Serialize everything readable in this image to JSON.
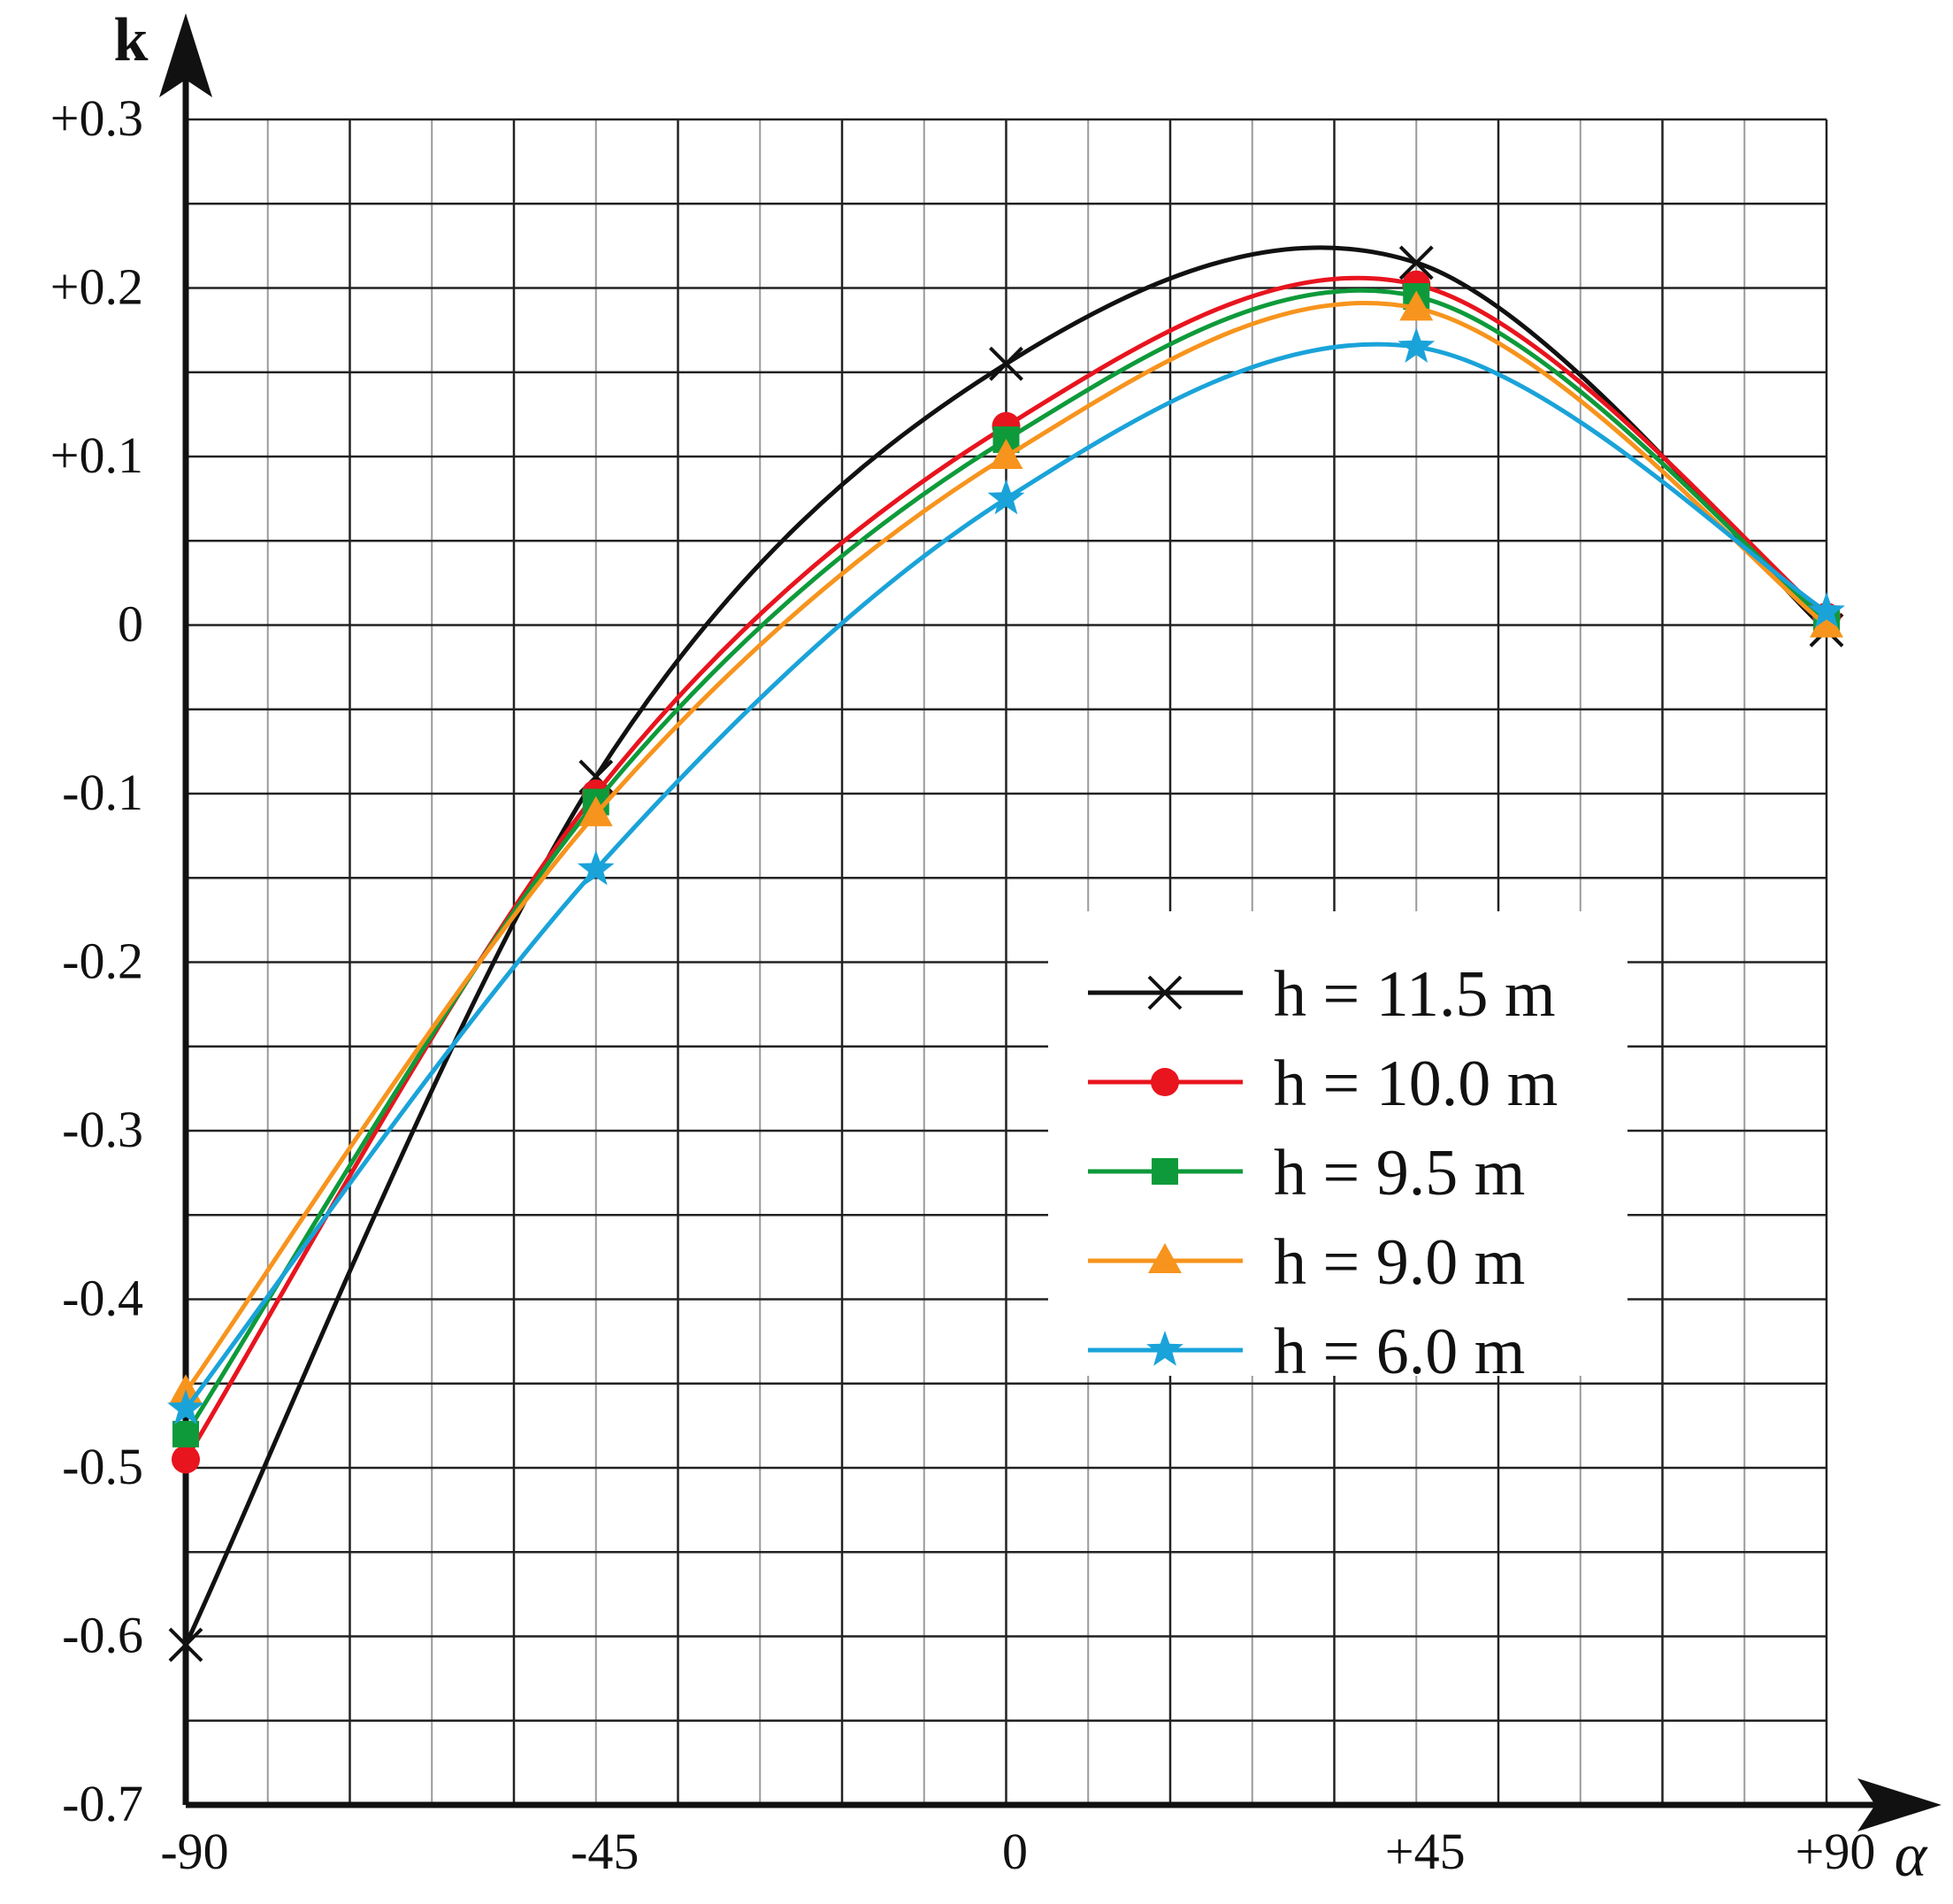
{
  "chart_data": {
    "type": "line",
    "title": "",
    "xlabel": "α",
    "ylabel": "k",
    "xlim": [
      -90,
      90
    ],
    "ylim": [
      -0.7,
      0.3
    ],
    "x_ticks": [
      -90,
      -45,
      0,
      45,
      90
    ],
    "x_tick_labels": [
      "-90",
      "-45",
      "0",
      "+45",
      "+90"
    ],
    "y_ticks": [
      0.3,
      0.2,
      0.1,
      0,
      -0.1,
      -0.2,
      -0.3,
      -0.4,
      -0.5,
      -0.6,
      -0.7
    ],
    "y_tick_labels": [
      "+0.3",
      "+0.2",
      "+0.1",
      "0",
      "-0.1",
      "-0.2",
      "-0.3",
      "-0.4",
      "-0.5",
      "-0.6",
      "-0.7"
    ],
    "grid": true,
    "legend_position": "center-right",
    "x": [
      -90,
      -45,
      0,
      45,
      90
    ],
    "series": [
      {
        "name": "h = 11.5 m",
        "values": [
          -0.605,
          -0.09,
          0.155,
          0.215,
          -0.003
        ],
        "color": "#111111",
        "marker": "x"
      },
      {
        "name": "h = 10.0 m",
        "values": [
          -0.495,
          -0.1,
          0.118,
          0.202,
          0.005
        ],
        "color": "#e8141e",
        "marker": "circle"
      },
      {
        "name": "h = 9.5 m",
        "values": [
          -0.48,
          -0.105,
          0.11,
          0.195,
          0.003
        ],
        "color": "#0e9a3a",
        "marker": "square"
      },
      {
        "name": "h = 9.0 m",
        "values": [
          -0.455,
          -0.112,
          0.1,
          0.188,
          0.0
        ],
        "color": "#f7941d",
        "marker": "triangle"
      },
      {
        "name": "h = 6.0 m",
        "values": [
          -0.465,
          -0.145,
          0.075,
          0.165,
          0.008
        ],
        "color": "#1aa3d9",
        "marker": "star"
      }
    ]
  }
}
